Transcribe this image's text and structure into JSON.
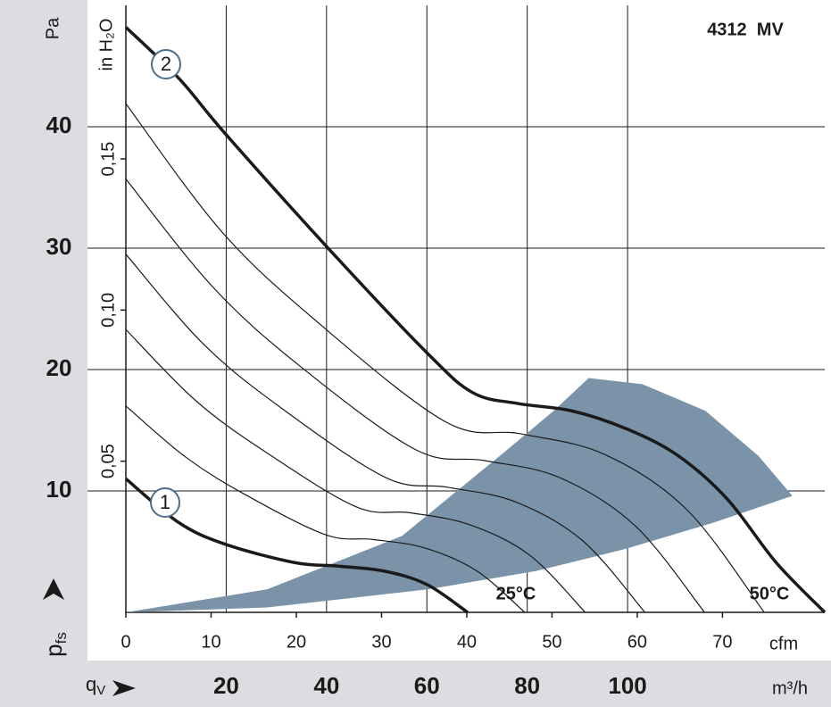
{
  "chart_data": {
    "type": "line",
    "title": "4312  MV",
    "y_label": "Pa",
    "y2_label": "in H₂O",
    "x_label": "cfm",
    "x2_label": "m³/h",
    "y_symbol": {
      "main": "p",
      "sub": "fs"
    },
    "x_symbol": {
      "main": "q",
      "sub": "V"
    },
    "annotations": [
      "25°C",
      "50°C"
    ],
    "xlim": [
      0,
      82
    ],
    "ylim": [
      0,
      50
    ],
    "xticks": [
      0,
      10,
      20,
      30,
      40,
      50,
      60,
      70
    ],
    "yticks": [
      10,
      20,
      30,
      40
    ],
    "x2lim": [
      0,
      139.3
    ],
    "x2ticks": [
      20,
      40,
      60,
      80,
      100
    ],
    "y2lim": [
      0,
      0.2008
    ],
    "y2ticks": [
      {
        "value": 0.05,
        "label": "0,05"
      },
      {
        "value": 0.1,
        "label": "0,10"
      },
      {
        "value": 0.15,
        "label": "0,15"
      }
    ],
    "grid": true,
    "operating_range": {
      "color": "#7a93a8",
      "x": [
        0,
        16.6,
        32.4,
        43.9,
        50.2,
        54.3,
        60.6,
        68,
        74.2,
        78.2,
        69,
        58.5,
        48.1,
        35.5,
        16.6
      ],
      "y": [
        0,
        1.9,
        6.3,
        12.9,
        16.6,
        19.3,
        18.8,
        16.6,
        12.9,
        9.6,
        7.4,
        5.2,
        3.4,
        1.9,
        0.4
      ]
    },
    "series": [
      {
        "name": "1",
        "color": "#1a1a1a",
        "width": 3.5,
        "x": [
          0,
          6.2,
          11.7,
          19.8,
          25,
          30.3,
          35.3,
          40.1
        ],
        "values": [
          11,
          7.4,
          5.6,
          4.1,
          3.8,
          3.4,
          2.3,
          0
        ]
      },
      {
        "color": "#1a1a1a",
        "width": 1.2,
        "x": [
          0,
          7.0,
          14.0,
          23.4,
          29.0,
          35.1,
          41.2,
          46.8
        ],
        "values": [
          17,
          12.8,
          9.7,
          6.4,
          6.0,
          5.3,
          3.4,
          0
        ]
      },
      {
        "color": "#1a1a1a",
        "width": 1.2,
        "x": [
          0,
          8.1,
          16.2,
          27.0,
          33.4,
          40.4,
          47.4,
          53.9
        ],
        "values": [
          23.3,
          17.5,
          13.3,
          8.7,
          8.2,
          7.2,
          4.7,
          0
        ]
      },
      {
        "color": "#1a1a1a",
        "width": 1.2,
        "x": [
          0,
          9.1,
          18.3,
          30.5,
          37.8,
          45.7,
          53.6,
          60.9
        ],
        "values": [
          29.5,
          22.1,
          16.8,
          11.1,
          10.3,
          9.1,
          5.9,
          0
        ]
      },
      {
        "color": "#1a1a1a",
        "width": 1.2,
        "x": [
          0,
          10.2,
          20.4,
          34.0,
          42.1,
          50.9,
          59.8,
          67.9
        ],
        "values": [
          35.7,
          26.8,
          20.3,
          13.4,
          12.5,
          11.1,
          7.1,
          0
        ]
      },
      {
        "color": "#1a1a1a",
        "width": 1.2,
        "x": [
          0,
          11.2,
          22.5,
          37.5,
          46.4,
          56.2,
          65.9,
          74.9
        ],
        "values": [
          41.9,
          31.4,
          23.9,
          15.7,
          14.7,
          13.0,
          8.4,
          0
        ]
      },
      {
        "name": "2",
        "color": "#1a1a1a",
        "width": 3.5,
        "x": [
          0,
          6.2,
          11.7,
          23.6,
          35.3,
          40.7,
          46,
          52.3,
          58.8,
          64.8,
          70.6,
          76.3,
          82
        ],
        "values": [
          48.2,
          44,
          39.4,
          30.1,
          21.4,
          18.1,
          17.2,
          16.6,
          15.1,
          12.9,
          9.3,
          4.1,
          0
        ]
      }
    ]
  }
}
